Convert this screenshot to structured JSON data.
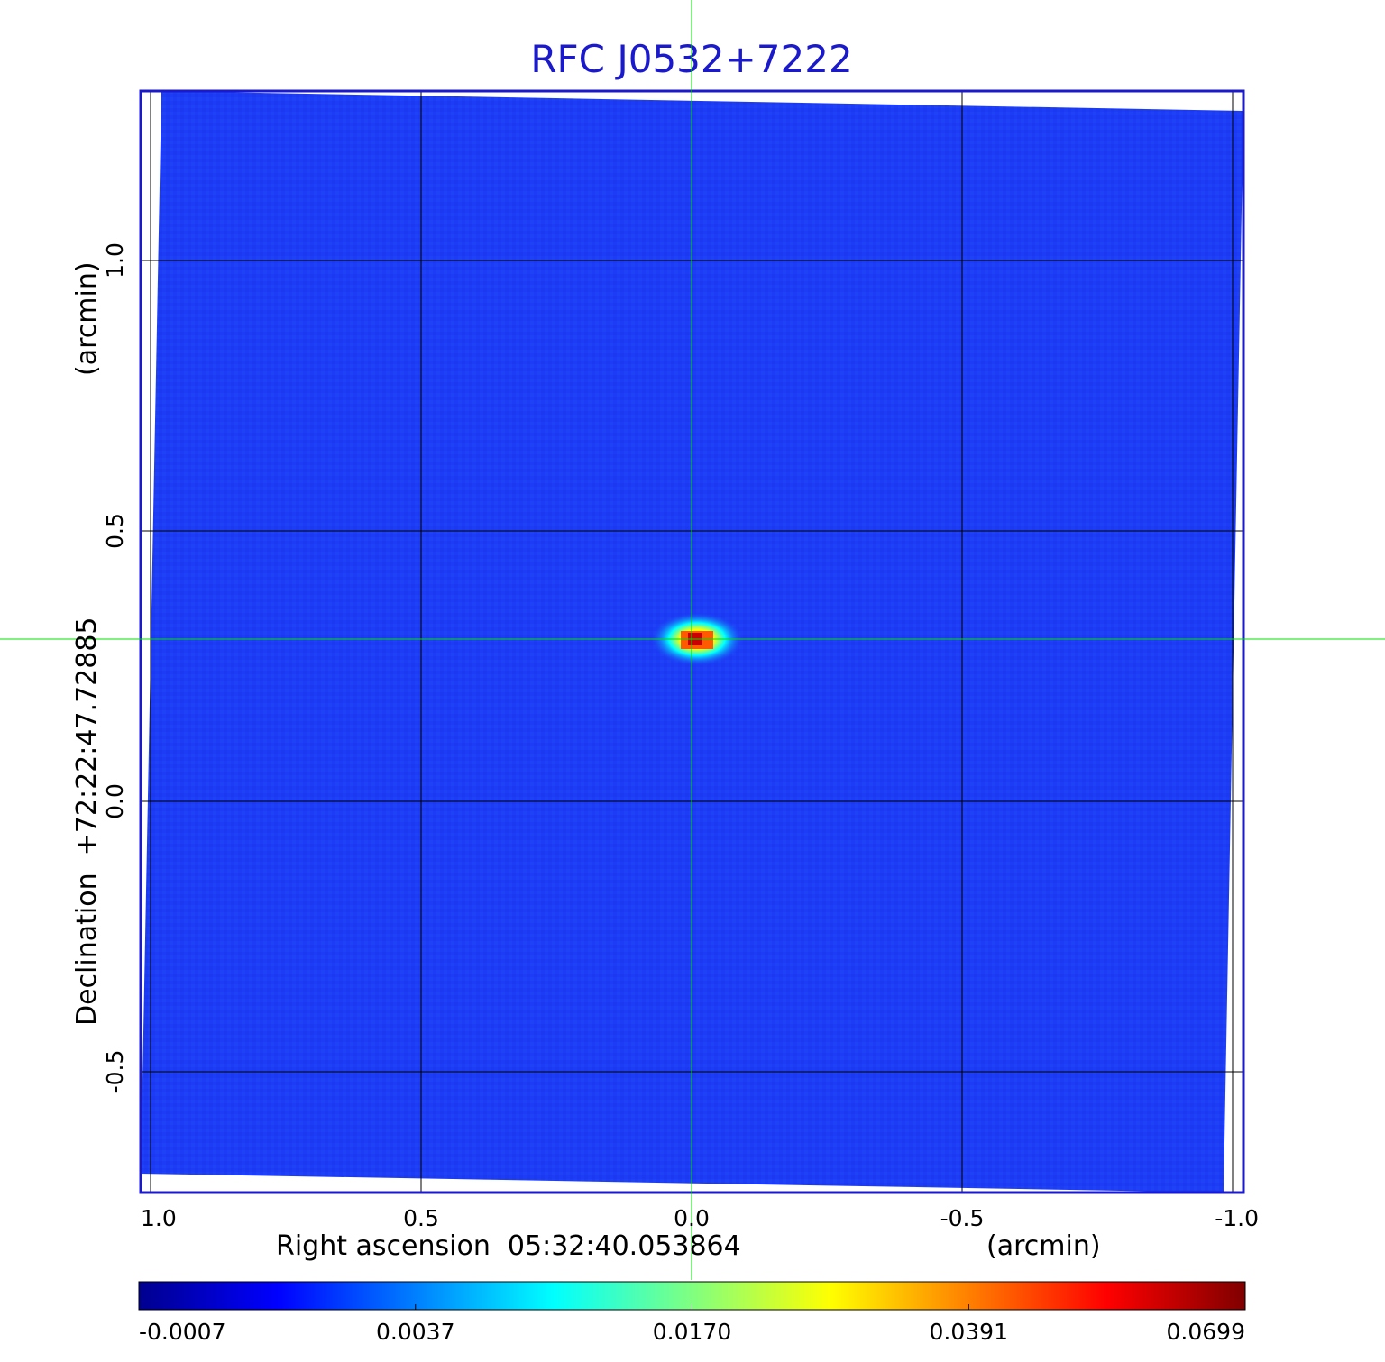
{
  "chart_data": {
    "type": "heatmap",
    "title": "RFC J0532+7222",
    "xlabel": "Right ascension  05:32:40.053864",
    "xunit": "(arcmin)",
    "ylabel": "Declination  +72:22:47.72885",
    "yunit": "(arcmin)",
    "xlim": [
      1.0,
      -1.0
    ],
    "ylim": [
      -0.72,
      1.26
    ],
    "x_ticks": [
      "1.0",
      "0.5",
      "0.0",
      "-0.5",
      "-1.0"
    ],
    "x_tick_values": [
      1.0,
      0.5,
      0.0,
      -0.5,
      -1.0
    ],
    "y_ticks": [
      "-0.5",
      "0.0",
      "0.5",
      "1.0"
    ],
    "y_tick_values": [
      -0.5,
      0.0,
      0.5,
      1.0
    ],
    "grid": true,
    "colormap": "jet",
    "colorbar_ticks": [
      "-0.0007",
      "0.0037",
      "0.0170",
      "0.0391",
      "0.0699"
    ],
    "colorbar_tick_values": [
      -0.0007,
      0.0037,
      0.017,
      0.0391,
      0.0699
    ],
    "peak": {
      "x": -0.01,
      "y": 0.3,
      "value": 0.0699
    },
    "crosshair": {
      "x": 0.0,
      "y": 0.3
    },
    "colors": {
      "title": "#1a1acc",
      "frame": "#1a1acc",
      "background_map": "#1c3cf5",
      "crosshair": "#00e000",
      "grid": "#000000"
    }
  }
}
